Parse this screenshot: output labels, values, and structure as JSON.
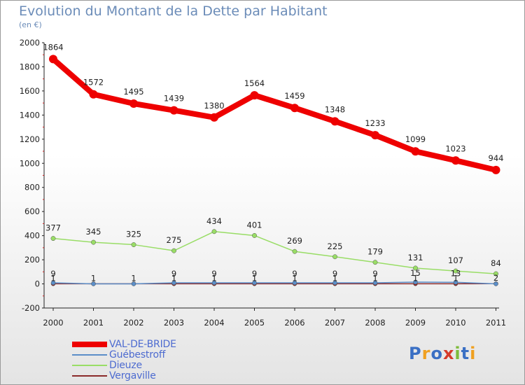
{
  "title": "Evolution du Montant de la Dette par Habitant",
  "subtitle": "(en €)",
  "logo": {
    "text": "Proxiti",
    "colors": [
      "#3a6fc4",
      "#f0a020",
      "#3a6fc4",
      "#d63a2a",
      "#7dbb3a",
      "#3a6fc4",
      "#f0a020"
    ]
  },
  "chart_data": {
    "type": "line",
    "x": [
      "2000",
      "2001",
      "2002",
      "2003",
      "2004",
      "2005",
      "2006",
      "2007",
      "2008",
      "2009",
      "2010",
      "2011"
    ],
    "ylim": [
      -200,
      2000
    ],
    "yticks": [
      "-200",
      "0",
      "200",
      "400",
      "600",
      "800",
      "1000",
      "1200",
      "1400",
      "1600",
      "1800",
      "2000"
    ],
    "grid": false,
    "legend_position": "bottom-left",
    "series": [
      {
        "name": "VAL-DE-BRIDE",
        "color": "#ee0000",
        "values": [
          1864,
          1572,
          1495,
          1439,
          1380,
          1564,
          1459,
          1348,
          1233,
          1099,
          1023,
          944
        ],
        "labels": [
          "1864",
          "1572",
          "1495",
          "1439",
          "1380",
          "1564",
          "1459",
          "1348",
          "1233",
          "1099",
          "1023",
          "944"
        ]
      },
      {
        "name": "Guébestroff",
        "color": "#5b8ec8",
        "values": [
          9,
          0,
          0,
          9,
          9,
          9,
          9,
          9,
          9,
          15,
          13,
          0
        ],
        "labels": [
          "9",
          "",
          "",
          "9",
          "9",
          "9",
          "9",
          "9",
          "9",
          "15",
          "13",
          ""
        ]
      },
      {
        "name": "Dieuze",
        "color": "#99dd66",
        "values": [
          377,
          345,
          325,
          275,
          434,
          401,
          269,
          225,
          179,
          131,
          107,
          84
        ],
        "labels": [
          "377",
          "345",
          "325",
          "275",
          "434",
          "401",
          "269",
          "225",
          "179",
          "131",
          "107",
          "84"
        ]
      },
      {
        "name": "Vergaville",
        "color": "#8a2a2a",
        "values": [
          1,
          1,
          1,
          1,
          1,
          1,
          1,
          1,
          1,
          1,
          1,
          2
        ],
        "labels": [
          "1",
          "1",
          "1",
          "1",
          "1",
          "1",
          "1",
          "1",
          "1",
          "1",
          "1",
          "2"
        ]
      }
    ]
  }
}
